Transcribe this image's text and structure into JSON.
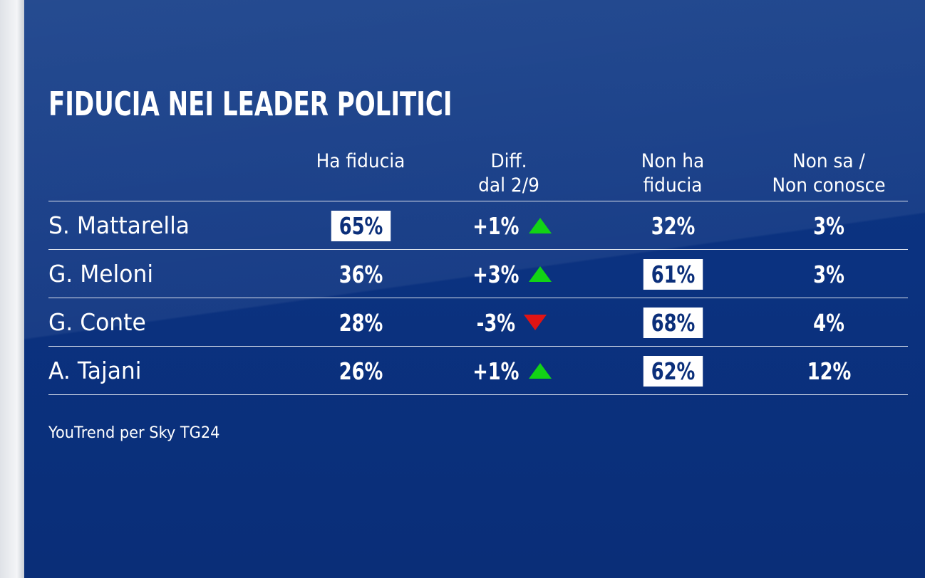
{
  "title": "FIDUCIA NEI LEADER POLITICI",
  "source": "YouTrend per Sky TG24",
  "colors": {
    "background": "#0b3280",
    "text": "#ffffff",
    "up": "#12d315",
    "down": "#e01414"
  },
  "chart_data": {
    "type": "table",
    "title": "FIDUCIA NEI LEADER POLITICI",
    "columns": [
      {
        "key": "fiducia",
        "label_lines": [
          "",
          "Ha fiducia"
        ]
      },
      {
        "key": "diff",
        "label_lines": [
          "Diff.",
          "dal 2/9"
        ]
      },
      {
        "key": "non_fiducia",
        "label_lines": [
          "Non ha",
          "fiducia"
        ]
      },
      {
        "key": "non_sa",
        "label_lines": [
          "Non sa /",
          "Non conosce"
        ]
      }
    ],
    "rows": [
      {
        "name": "S. Mattarella",
        "fiducia": "65%",
        "diff": "+1%",
        "trend": "up",
        "non_fiducia": "32%",
        "non_sa": "3%",
        "highlight": "fiducia"
      },
      {
        "name": "G. Meloni",
        "fiducia": "36%",
        "diff": "+3%",
        "trend": "up",
        "non_fiducia": "61%",
        "non_sa": "3%",
        "highlight": "non_fiducia"
      },
      {
        "name": "G. Conte",
        "fiducia": "28%",
        "diff": "-3%",
        "trend": "down",
        "non_fiducia": "68%",
        "non_sa": "4%",
        "highlight": "non_fiducia"
      },
      {
        "name": "A. Tajani",
        "fiducia": "26%",
        "diff": "+1%",
        "trend": "up",
        "non_fiducia": "62%",
        "non_sa": "12%",
        "highlight": "non_fiducia"
      }
    ]
  }
}
